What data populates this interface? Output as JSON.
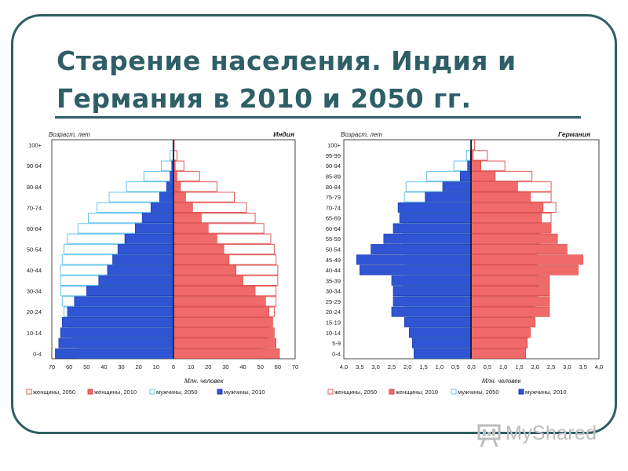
{
  "slide": {
    "title": "Старение населения. Индия и Германия в 2010 и 2050 гг.",
    "colors": {
      "accent": "#2e5e66",
      "female": "#f06a6a",
      "female_outline": "#e35a5a",
      "male": "#2f55d4",
      "male_outline": "#66c4ee"
    }
  },
  "watermark": {
    "text": "MyShared"
  },
  "chart_data": [
    {
      "type": "population_pyramid",
      "country_label": "Индия",
      "y_label": "Возраст, лет",
      "x_label": "Млн. человек",
      "age_groups": [
        "0-4",
        "5-9",
        "10-14",
        "15-19",
        "20-24",
        "25-29",
        "30-34",
        "35-39",
        "40-44",
        "45-49",
        "50-54",
        "55-59",
        "60-64",
        "65-69",
        "70-74",
        "75-79",
        "80-84",
        "85-89",
        "90-94",
        "95-99",
        "100+"
      ],
      "y_tick_labels": [
        "0-4",
        "10-14",
        "20-24",
        "30-34",
        "40-44",
        "50-54",
        "60-64",
        "70-74",
        "80-84",
        "90-94",
        "100+"
      ],
      "x_ticks_left": [
        "70",
        "60",
        "50",
        "40",
        "30",
        "20",
        "10",
        "0"
      ],
      "x_ticks_right": [
        "0",
        "10",
        "20",
        "30",
        "40",
        "50",
        "60",
        "70"
      ],
      "xlim": [
        -70,
        70
      ],
      "series": [
        {
          "name": "женщины, 2050",
          "side": "right",
          "style": "outline",
          "values": [
            51,
            53,
            55,
            57,
            58,
            59,
            59,
            60,
            60,
            59,
            58,
            56,
            52,
            47,
            42,
            35,
            25,
            15,
            6,
            2,
            0.4
          ]
        },
        {
          "name": "женщины, 2010",
          "side": "right",
          "style": "fill",
          "values": [
            61,
            59,
            58,
            57,
            55,
            53,
            47,
            40,
            36,
            32,
            29,
            25,
            20,
            16,
            11,
            7,
            4,
            2,
            1,
            0.3,
            0.1
          ]
        },
        {
          "name": "мужчины, 2050",
          "side": "left",
          "style": "outline",
          "values": [
            55,
            57,
            59,
            61,
            63,
            64,
            65,
            65,
            65,
            64,
            63,
            61,
            55,
            49,
            44,
            37,
            27,
            17,
            7,
            2,
            0.4
          ]
        },
        {
          "name": "мужчины, 2010",
          "side": "left",
          "style": "fill",
          "values": [
            68,
            66,
            65,
            64,
            61,
            57,
            50,
            43,
            38,
            35,
            32,
            28,
            22,
            18,
            13,
            8,
            4,
            2,
            1,
            0.3,
            0.1
          ]
        }
      ]
    },
    {
      "type": "population_pyramid",
      "country_label": "Германия",
      "y_label": "Возраст, лет",
      "x_label": "Млн. человек",
      "age_groups": [
        "0-4",
        "5-9",
        "10-14",
        "15-19",
        "20-24",
        "25-29",
        "30-34",
        "35-39",
        "40-44",
        "45-49",
        "50-54",
        "55-59",
        "60-64",
        "65-69",
        "70-74",
        "75-79",
        "80-84",
        "85-89",
        "90-94",
        "95-99",
        "100+"
      ],
      "y_tick_labels": [
        "0-4",
        "5-9",
        "10-14",
        "15-19",
        "20-24",
        "25-29",
        "30-34",
        "35-39",
        "40-44",
        "45-49",
        "50-54",
        "55-59",
        "60-64",
        "65-69",
        "70-74",
        "75-79",
        "80-84",
        "85-89",
        "90-94",
        "95-99",
        "100+"
      ],
      "x_ticks_left": [
        "4,0",
        "3,5",
        "3,0",
        "2,5",
        "2,0",
        "1,5",
        "1,0",
        "0,5",
        "0,0"
      ],
      "x_ticks_right": [
        "0,0",
        "0,5",
        "1,0",
        "1,5",
        "2,0",
        "2,5",
        "3,0",
        "3,5",
        "4,0"
      ],
      "xlim": [
        -4,
        4
      ],
      "series": [
        {
          "name": "женщины, 2050",
          "side": "right",
          "style": "outline",
          "values": [
            1.7,
            1.75,
            1.8,
            1.85,
            1.95,
            2.05,
            2.1,
            2.1,
            2.05,
            2.05,
            2.05,
            2.15,
            2.25,
            2.5,
            2.65,
            2.5,
            2.5,
            1.9,
            1.05,
            0.5,
            0.1
          ]
        },
        {
          "name": "женщины, 2010",
          "side": "right",
          "style": "fill",
          "values": [
            1.7,
            1.75,
            1.85,
            2.0,
            2.45,
            2.45,
            2.45,
            2.45,
            3.35,
            3.5,
            3.0,
            2.7,
            2.5,
            2.2,
            2.25,
            1.85,
            1.45,
            0.75,
            0.3,
            0.05,
            0.01
          ]
        },
        {
          "name": "мужчины, 2050",
          "side": "left",
          "style": "outline",
          "values": [
            1.8,
            1.85,
            1.9,
            1.95,
            2.05,
            2.1,
            2.15,
            2.15,
            2.1,
            2.1,
            2.1,
            2.15,
            2.15,
            2.15,
            2.25,
            2.1,
            2.05,
            1.4,
            0.55,
            0.15,
            0.03
          ]
        },
        {
          "name": "мужчины, 2010",
          "side": "left",
          "style": "fill",
          "values": [
            1.8,
            1.85,
            1.95,
            2.1,
            2.5,
            2.45,
            2.45,
            2.5,
            3.5,
            3.6,
            3.15,
            2.75,
            2.45,
            2.25,
            2.3,
            1.45,
            0.9,
            0.35,
            0.12,
            0.03,
            0.005
          ]
        }
      ]
    }
  ]
}
